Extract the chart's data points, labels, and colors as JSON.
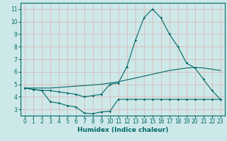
{
  "xlabel": "Humidex (Indice chaleur)",
  "background_color": "#cde8e8",
  "grid_color": "#dbb8b8",
  "line_color": "#006868",
  "xlim": [
    -0.5,
    23.5
  ],
  "ylim": [
    2.5,
    11.5
  ],
  "xticks": [
    0,
    1,
    2,
    3,
    4,
    5,
    6,
    7,
    8,
    9,
    10,
    11,
    12,
    13,
    14,
    15,
    16,
    17,
    18,
    19,
    20,
    21,
    22,
    23
  ],
  "yticks": [
    3,
    4,
    5,
    6,
    7,
    8,
    9,
    10,
    11
  ],
  "series1_x": [
    0,
    1,
    2,
    3,
    4,
    5,
    6,
    7,
    8,
    9,
    10,
    11,
    12,
    13,
    14,
    15,
    16,
    17,
    18,
    19,
    20,
    21,
    22,
    23
  ],
  "series1_y": [
    4.7,
    4.6,
    4.5,
    4.5,
    4.4,
    4.3,
    4.2,
    4.0,
    4.1,
    4.2,
    5.0,
    5.1,
    6.4,
    8.5,
    10.3,
    11.0,
    10.3,
    9.0,
    8.0,
    6.7,
    6.3,
    5.4,
    4.5,
    3.8
  ],
  "series2_x": [
    0,
    1,
    2,
    3,
    4,
    5,
    6,
    7,
    8,
    9,
    10,
    11,
    12,
    13,
    14,
    15,
    16,
    17,
    18,
    19,
    20,
    21,
    22,
    23
  ],
  "series2_y": [
    4.7,
    4.6,
    4.5,
    3.6,
    3.5,
    3.3,
    3.2,
    2.7,
    2.65,
    2.8,
    2.85,
    3.8,
    3.8,
    3.8,
    3.8,
    3.8,
    3.8,
    3.8,
    3.8,
    3.8,
    3.8,
    3.8,
    3.8,
    3.8
  ],
  "series3_x": [
    0,
    1,
    2,
    3,
    4,
    5,
    6,
    7,
    8,
    9,
    10,
    11,
    12,
    13,
    14,
    15,
    16,
    17,
    18,
    19,
    20,
    21,
    22,
    23
  ],
  "series3_y": [
    4.7,
    4.7,
    4.7,
    4.7,
    4.75,
    4.8,
    4.85,
    4.9,
    4.95,
    5.0,
    5.1,
    5.2,
    5.35,
    5.5,
    5.65,
    5.8,
    5.95,
    6.1,
    6.2,
    6.3,
    6.35,
    6.3,
    6.2,
    6.1
  ]
}
